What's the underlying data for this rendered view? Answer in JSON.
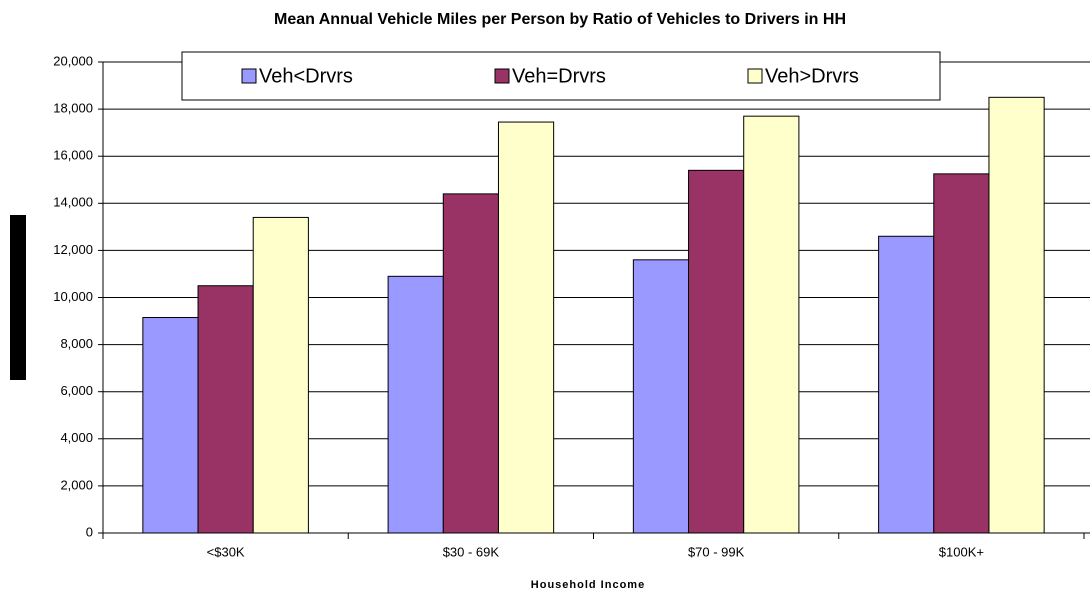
{
  "chart_data": {
    "type": "bar",
    "title": "Mean Annual Vehicle Miles per Person by Ratio of Vehicles to Drivers in HH",
    "x_label": "Household Income",
    "categories": [
      "<$30K",
      "$30 - 69K",
      "$70 - 99K",
      "$100K+"
    ],
    "series": [
      {
        "name": "Veh<Drvrs",
        "color": "#9999ff",
        "values": [
          9150,
          10900,
          11600,
          12600
        ]
      },
      {
        "name": "Veh=Drvrs",
        "color": "#993366",
        "values": [
          10500,
          14400,
          15400,
          15250
        ]
      },
      {
        "name": "Veh>Drvrs",
        "color": "#ffffcc",
        "values": [
          13400,
          17450,
          17700,
          18500
        ]
      }
    ],
    "ylim": [
      0,
      20000
    ],
    "yticks": [
      0,
      {
        "value": 2000,
        "label": "2,000"
      },
      {
        "value": 4000,
        "label": "4,000"
      },
      {
        "value": 6000,
        "label": "6,000"
      },
      {
        "value": 8000,
        "label": "8,000"
      },
      {
        "value": 10000,
        "label": "10,000"
      },
      {
        "value": 12000,
        "label": "12,000"
      },
      {
        "value": 14000,
        "label": "14,000"
      },
      {
        "value": 16000,
        "label": "16,000"
      },
      {
        "value": 18000,
        "label": "18,000"
      },
      {
        "value": 20000,
        "label": "20,000"
      }
    ],
    "grid": true,
    "legend": "top"
  }
}
